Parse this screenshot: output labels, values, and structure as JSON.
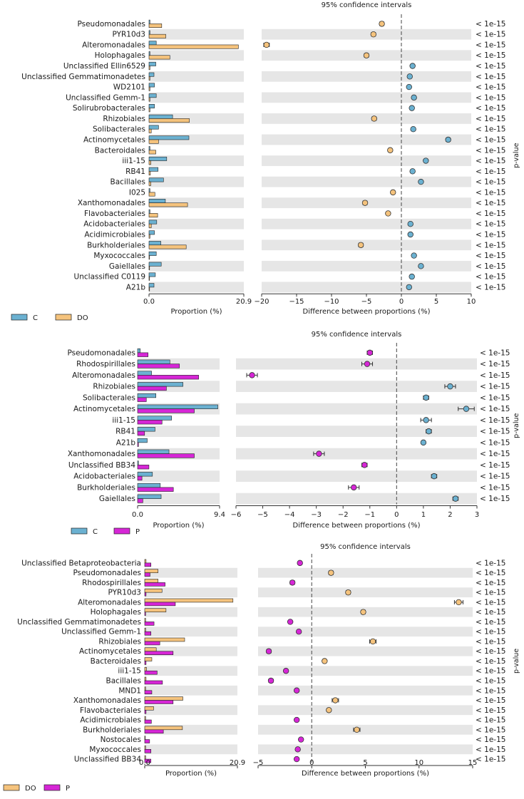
{
  "colors": {
    "C": "#6bb1d1",
    "DO": "#f5c37d",
    "P": "#d626d6",
    "stripe": "#e6e6e6"
  },
  "chart_data": [
    {
      "type": "bar",
      "title": "95% confidence intervals",
      "xlabel_left": "Proportion (%)",
      "xlabel_right": "Difference between proportions (%)",
      "ylabel_right": "p-value",
      "prop_ticks": [
        "0.0",
        "20.9"
      ],
      "prop_max": 20.9,
      "diff_xlim": [
        -20,
        10
      ],
      "diff_ticks": [
        -20,
        -15,
        -10,
        -5,
        0,
        5,
        10
      ],
      "diff_tick_labels": [
        "−20",
        "−15",
        "−10",
        "−5",
        "0",
        "5",
        "10"
      ],
      "legend": [
        {
          "name": "C",
          "color": "#6bb1d1"
        },
        {
          "name": "DO",
          "color": "#f5c37d"
        }
      ],
      "categories": [
        "Pseudomonadales",
        "PYR10d3",
        "Alteromonadales",
        "Holophagales",
        "Unclassified Ellin6529",
        "Unclassified Gemmatimonadetes",
        "WD2101",
        "Unclassified Gemm-1",
        "Solirubrobacterales",
        "Rhizobiales",
        "Solibacterales",
        "Actinomycetales",
        "Bacteroidales",
        "iii1-15",
        "RB41",
        "Bacillales",
        "I025",
        "Xanthomonadales",
        "Flavobacteriales",
        "Acidobacteriales",
        "Acidimicrobiales",
        "Burkholderiales",
        "Myxococcales",
        "Gaiellales",
        "Unclassified C0119",
        "A21b"
      ],
      "series": [
        {
          "name": "C",
          "values": [
            0.2,
            0.2,
            1.6,
            0.2,
            1.5,
            1.1,
            1.2,
            1.6,
            1.2,
            5.2,
            2.1,
            8.8,
            0.2,
            3.9,
            2.0,
            3.2,
            0.2,
            3.6,
            0.2,
            1.7,
            1.2,
            2.6,
            1.6,
            2.7,
            1.4,
            1.1
          ]
        },
        {
          "name": "DO",
          "values": [
            2.8,
            3.7,
            19.7,
            4.6,
            0.2,
            0.2,
            0.2,
            0.2,
            0.2,
            8.9,
            0.5,
            2.1,
            1.5,
            0.4,
            0.3,
            0.4,
            1.3,
            8.5,
            1.9,
            0.5,
            0.2,
            8.2,
            0.1,
            0.1,
            0.1,
            0.1
          ]
        }
      ],
      "difference": [
        -2.8,
        -4.0,
        -19.3,
        -5.0,
        1.6,
        1.2,
        1.1,
        1.8,
        1.5,
        -3.9,
        1.7,
        6.7,
        -1.6,
        3.5,
        1.6,
        2.8,
        -1.2,
        -5.2,
        -1.9,
        1.3,
        1.3,
        -5.8,
        1.8,
        2.8,
        1.5,
        1.1
      ],
      "ci_halfwidth": [
        0.3,
        0.3,
        0.4,
        0.3,
        0.2,
        0.2,
        0.2,
        0.2,
        0.2,
        0.3,
        0.2,
        0.3,
        0.2,
        0.2,
        0.2,
        0.2,
        0.2,
        0.3,
        0.2,
        0.2,
        0.2,
        0.3,
        0.2,
        0.2,
        0.2,
        0.2
      ],
      "dot_series": [
        1,
        1,
        1,
        1,
        0,
        0,
        0,
        0,
        0,
        1,
        0,
        0,
        1,
        0,
        0,
        0,
        1,
        1,
        1,
        0,
        0,
        1,
        0,
        0,
        0,
        0
      ],
      "p_values": [
        "< 1e-15",
        "< 1e-15",
        "< 1e-15",
        "< 1e-15",
        "< 1e-15",
        "< 1e-15",
        "< 1e-15",
        "< 1e-15",
        "< 1e-15",
        "< 1e-15",
        "< 1e-15",
        "< 1e-15",
        "< 1e-15",
        "< 1e-15",
        "< 1e-15",
        "< 1e-15",
        "< 1e-15",
        "< 1e-15",
        "< 1e-15",
        "< 1e-15",
        "< 1e-15",
        "< 1e-15",
        "< 1e-15",
        "< 1e-15",
        "< 1e-15",
        "< 1e-15"
      ]
    },
    {
      "type": "bar",
      "title": "95% confidence intervals",
      "xlabel_left": "Proportion (%)",
      "xlabel_right": "Difference between proportions (%)",
      "ylabel_right": "p-value",
      "prop_ticks": [
        "0.0",
        "9.4"
      ],
      "prop_max": 9.4,
      "diff_xlim": [
        -6,
        3
      ],
      "diff_ticks": [
        -6,
        -5,
        -4,
        -3,
        -2,
        -1,
        0,
        1,
        2,
        3
      ],
      "diff_tick_labels": [
        "−6",
        "−5",
        "−4",
        "−3",
        "−2",
        "−1",
        "0",
        "1",
        "2",
        "3"
      ],
      "legend": [
        {
          "name": "C",
          "color": "#6bb1d1"
        },
        {
          "name": "P",
          "color": "#d626d6"
        }
      ],
      "categories": [
        "Pseudomonadales",
        "Rhodospirillales",
        "Alteromonadales",
        "Rhizobiales",
        "Solibacterales",
        "Actinomycetales",
        "iii1-15",
        "RB41",
        "A21b",
        "Xanthomonadales",
        "Unclassified BB34",
        "Acidobacteriales",
        "Burkholderiales",
        "Gaiellales"
      ],
      "series": [
        {
          "name": "C",
          "values": [
            0.3,
            3.7,
            1.6,
            5.2,
            2.1,
            9.2,
            3.9,
            2.0,
            1.1,
            3.6,
            0.1,
            1.7,
            2.6,
            2.7
          ]
        },
        {
          "name": "P",
          "values": [
            1.2,
            4.8,
            7.0,
            3.3,
            1.0,
            6.5,
            2.8,
            0.8,
            0.1,
            6.5,
            1.3,
            0.5,
            4.1,
            0.6
          ]
        }
      ],
      "difference": [
        -1.0,
        -1.1,
        -5.4,
        2.0,
        1.1,
        2.6,
        1.1,
        1.2,
        1.0,
        -2.9,
        -1.2,
        1.4,
        -1.6,
        2.2
      ],
      "ci_halfwidth": [
        0.1,
        0.2,
        0.2,
        0.2,
        0.1,
        0.3,
        0.2,
        0.1,
        0.05,
        0.2,
        0.1,
        0.1,
        0.2,
        0.1
      ],
      "dot_series": [
        1,
        1,
        1,
        0,
        0,
        0,
        0,
        0,
        0,
        1,
        1,
        0,
        1,
        0
      ],
      "p_values": [
        "< 1e-15",
        "< 1e-15",
        "< 1e-15",
        "< 1e-15",
        "< 1e-15",
        "< 1e-15",
        "< 1e-15",
        "< 1e-15",
        "< 1e-15",
        "< 1e-15",
        "< 1e-15",
        "< 1e-15",
        "< 1e-15",
        "< 1e-15"
      ]
    },
    {
      "type": "bar",
      "title": "95% confidence intervals",
      "xlabel_left": "Proportion (%)",
      "xlabel_right": "Difference between proportions (%)",
      "ylabel_right": "p-value",
      "prop_ticks": [
        "0.0",
        "20.9"
      ],
      "prop_max": 20.9,
      "diff_xlim": [
        -5,
        15
      ],
      "diff_ticks": [
        -5,
        0,
        5,
        10,
        15
      ],
      "diff_tick_labels": [
        "−5",
        "0",
        "5",
        "10",
        "15"
      ],
      "legend": [
        {
          "name": "DO",
          "color": "#f5c37d"
        },
        {
          "name": "P",
          "color": "#d626d6"
        }
      ],
      "categories": [
        "Unclassified Betaproteobacteria",
        "Pseudomonadales",
        "Rhodospirillales",
        "PYR10d3",
        "Alteromonadales",
        "Holophagales",
        "Unclassified Gemmatimonadetes",
        "Unclassified Gemm-1",
        "Rhizobiales",
        "Actinomycetales",
        "Bacteroidales",
        "iii1-15",
        "Bacillales",
        "MND1",
        "Xanthomonadales",
        "Flavobacteriales",
        "Acidimicrobiales",
        "Burkholderiales",
        "Nostocales",
        "Myxococcales",
        "Unclassified BB34"
      ],
      "series": [
        {
          "name": "DO",
          "values": [
            0.3,
            3.0,
            3.0,
            3.9,
            19.9,
            4.8,
            0.2,
            0.2,
            9.0,
            2.6,
            1.6,
            0.4,
            0.3,
            0.2,
            8.6,
            2.0,
            0.2,
            8.5,
            0.1,
            0.2,
            0.2
          ]
        },
        {
          "name": "P",
          "values": [
            1.4,
            1.2,
            4.6,
            0.3,
            6.9,
            0.2,
            2.1,
            1.4,
            3.4,
            6.4,
            0.3,
            2.8,
            4.0,
            1.6,
            6.4,
            0.3,
            1.5,
            4.2,
            1.1,
            1.4,
            1.4
          ]
        }
      ],
      "difference": [
        -1.1,
        1.8,
        -1.8,
        3.4,
        13.7,
        4.8,
        -2.0,
        -1.2,
        5.7,
        -4.0,
        1.2,
        -2.4,
        -3.8,
        -1.4,
        2.2,
        1.6,
        -1.4,
        4.2,
        -1.0,
        -1.3,
        -1.4
      ],
      "ci_halfwidth": [
        0.1,
        0.2,
        0.2,
        0.2,
        0.4,
        0.2,
        0.1,
        0.1,
        0.3,
        0.2,
        0.1,
        0.1,
        0.2,
        0.1,
        0.3,
        0.1,
        0.1,
        0.3,
        0.1,
        0.1,
        0.1
      ],
      "dot_series": [
        1,
        0,
        1,
        0,
        0,
        0,
        1,
        1,
        0,
        1,
        0,
        1,
        1,
        1,
        0,
        0,
        1,
        0,
        1,
        1,
        1
      ],
      "p_values": [
        "< 1e-15",
        "< 1e-15",
        "< 1e-15",
        "< 1e-15",
        "< 1e-15",
        "< 1e-15",
        "< 1e-15",
        "< 1e-15",
        "< 1e-15",
        "< 1e-15",
        "< 1e-15",
        "< 1e-15",
        "< 1e-15",
        "< 1e-15",
        "< 1e-15",
        "< 1e-15",
        "< 1e-15",
        "< 1e-15",
        "< 1e-15",
        "< 1e-15",
        "< 1e-15"
      ]
    }
  ]
}
